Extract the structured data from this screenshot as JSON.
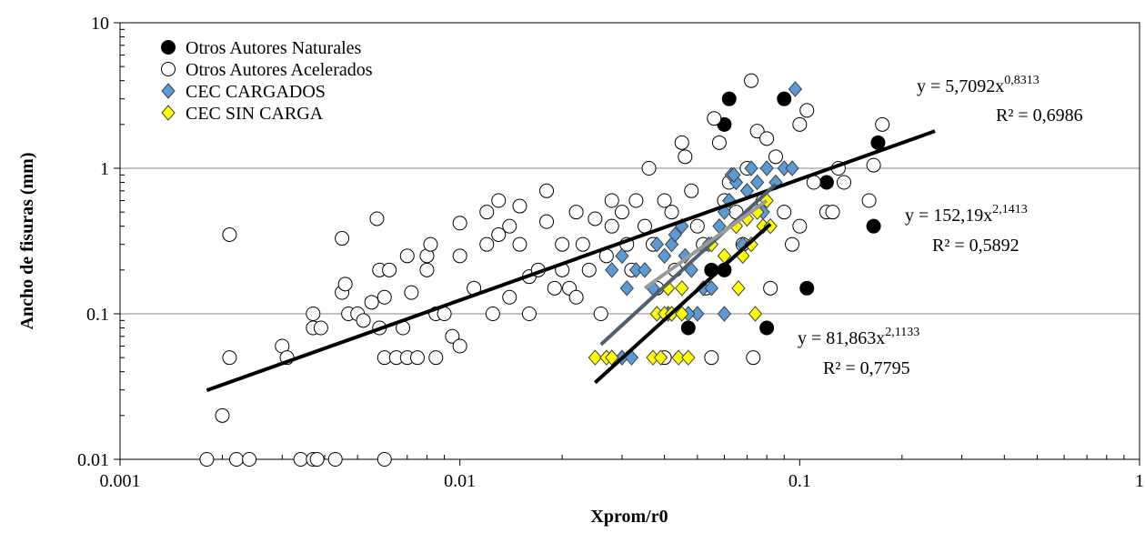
{
  "chart_data": {
    "type": "scatter",
    "xlabel": "Xprom/r0",
    "ylabel": "Ancho de fisuras (mm)",
    "xscale": "log",
    "yscale": "log",
    "xlim": [
      0.001,
      1
    ],
    "ylim": [
      0.01,
      10
    ],
    "xticks": [
      0.001,
      0.01,
      0.1,
      1
    ],
    "yticks": [
      0.01,
      0.1,
      1,
      10
    ],
    "grid": true,
    "legend": "top-left",
    "series": [
      {
        "name": "Otros Autores Naturales",
        "color": "#000000",
        "marker": "circle",
        "x": [
          0.062,
          0.09,
          0.06,
          0.17,
          0.12,
          0.165,
          0.105,
          0.08,
          0.047,
          0.055,
          0.06
        ],
        "values": [
          3,
          3,
          2,
          1.5,
          0.8,
          0.4,
          0.15,
          0.08,
          0.08,
          0.2,
          0.2
        ]
      },
      {
        "name": "Otros Autores Acelerados",
        "color": "#ffffff",
        "marker": "circle",
        "x": [
          0.0018,
          0.0022,
          0.0024,
          0.0034,
          0.0037,
          0.0038,
          0.0043,
          0.006,
          0.002,
          0.0021,
          0.0021,
          0.003,
          0.0031,
          0.0037,
          0.0037,
          0.0039,
          0.0045,
          0.0045,
          0.0046,
          0.0047,
          0.005,
          0.0052,
          0.0055,
          0.0057,
          0.0058,
          0.0058,
          0.006,
          0.006,
          0.0062,
          0.0065,
          0.0068,
          0.007,
          0.007,
          0.0072,
          0.0075,
          0.008,
          0.008,
          0.0082,
          0.0085,
          0.0085,
          0.009,
          0.0095,
          0.01,
          0.01,
          0.01,
          0.011,
          0.012,
          0.012,
          0.0125,
          0.013,
          0.013,
          0.014,
          0.014,
          0.015,
          0.015,
          0.016,
          0.016,
          0.017,
          0.018,
          0.018,
          0.019,
          0.02,
          0.02,
          0.021,
          0.022,
          0.022,
          0.023,
          0.024,
          0.025,
          0.026,
          0.027,
          0.028,
          0.028,
          0.03,
          0.031,
          0.032,
          0.033,
          0.035,
          0.036,
          0.037,
          0.038,
          0.04,
          0.04,
          0.042,
          0.043,
          0.045,
          0.046,
          0.048,
          0.05,
          0.052,
          0.053,
          0.055,
          0.056,
          0.058,
          0.06,
          0.062,
          0.065,
          0.068,
          0.07,
          0.072,
          0.073,
          0.075,
          0.078,
          0.08,
          0.082,
          0.085,
          0.09,
          0.095,
          0.1,
          0.1,
          0.105,
          0.11,
          0.12,
          0.125,
          0.13,
          0.135,
          0.16,
          0.165,
          0.175
        ],
        "values": [
          0.01,
          0.01,
          0.01,
          0.01,
          0.01,
          0.01,
          0.01,
          0.01,
          0.02,
          0.05,
          0.35,
          0.06,
          0.05,
          0.1,
          0.08,
          0.08,
          0.33,
          0.14,
          0.16,
          0.1,
          0.1,
          0.09,
          0.12,
          0.45,
          0.2,
          0.08,
          0.05,
          0.13,
          0.2,
          0.05,
          0.08,
          0.25,
          0.05,
          0.14,
          0.05,
          0.25,
          0.2,
          0.3,
          0.1,
          0.05,
          0.1,
          0.07,
          0.06,
          0.25,
          0.42,
          0.15,
          0.3,
          0.5,
          0.1,
          0.35,
          0.6,
          0.13,
          0.4,
          0.3,
          0.55,
          0.18,
          0.1,
          0.2,
          0.7,
          0.43,
          0.15,
          0.3,
          0.2,
          0.15,
          0.13,
          0.5,
          0.3,
          0.2,
          0.45,
          0.1,
          0.25,
          0.6,
          0.4,
          0.5,
          0.3,
          0.2,
          0.6,
          0.4,
          1.0,
          0.3,
          0.15,
          0.6,
          0.05,
          0.5,
          0.2,
          1.5,
          1.2,
          0.7,
          0.4,
          0.3,
          0.15,
          0.05,
          2.2,
          1.5,
          0.6,
          0.8,
          0.5,
          0.3,
          1.0,
          4.0,
          0.05,
          1.8,
          0.6,
          1.6,
          0.15,
          1.2,
          0.5,
          0.3,
          0.4,
          2.0,
          2.5,
          0.8,
          0.5,
          0.5,
          1.0,
          0.8,
          0.6,
          1.05,
          2.0
        ]
      },
      {
        "name": "CEC CARGADOS",
        "color": "#5b9bd5",
        "marker": "diamond",
        "x": [
          0.028,
          0.03,
          0.032,
          0.028,
          0.03,
          0.031,
          0.033,
          0.035,
          0.037,
          0.038,
          0.04,
          0.042,
          0.043,
          0.045,
          0.046,
          0.048,
          0.05,
          0.052,
          0.054,
          0.055,
          0.058,
          0.06,
          0.062,
          0.063,
          0.065,
          0.068,
          0.07,
          0.072,
          0.075,
          0.078,
          0.08,
          0.085,
          0.09,
          0.095,
          0.097,
          0.06,
          0.064,
          0.041,
          0.047
        ],
        "values": [
          0.05,
          0.05,
          0.05,
          0.2,
          0.25,
          0.15,
          0.2,
          0.2,
          0.15,
          0.3,
          0.25,
          0.3,
          0.35,
          0.4,
          0.25,
          0.2,
          0.1,
          0.15,
          0.3,
          0.15,
          0.4,
          0.5,
          0.6,
          0.9,
          0.8,
          0.3,
          0.7,
          1.0,
          0.8,
          0.5,
          1.0,
          0.8,
          1.0,
          1.0,
          3.5,
          0.1,
          0.9,
          0.1,
          0.1
        ]
      },
      {
        "name": "CEC SIN CARGA",
        "color": "#ffff00",
        "marker": "diamond",
        "x": [
          0.025,
          0.027,
          0.028,
          0.037,
          0.039,
          0.044,
          0.047,
          0.038,
          0.04,
          0.042,
          0.045,
          0.041,
          0.045,
          0.055,
          0.06,
          0.065,
          0.066,
          0.068,
          0.07,
          0.072,
          0.074,
          0.075,
          0.078,
          0.08,
          0.082
        ],
        "values": [
          0.05,
          0.05,
          0.05,
          0.05,
          0.05,
          0.05,
          0.05,
          0.1,
          0.1,
          0.1,
          0.1,
          0.15,
          0.15,
          0.3,
          0.25,
          0.4,
          0.15,
          0.25,
          0.45,
          0.3,
          0.1,
          0.5,
          0.4,
          0.6,
          0.4
        ]
      }
    ],
    "trendlines": [
      {
        "color": "#000000",
        "x": [
          0.0018,
          0.25
        ],
        "values": [
          0.0298,
          1.8
        ]
      },
      {
        "color": "#000000",
        "x": [
          0.025,
          0.082
        ],
        "values": [
          0.0337,
          0.414
        ]
      },
      {
        "color": "#4f5f6f",
        "x": [
          0.026,
          0.085
        ],
        "values": [
          0.0614,
          0.776
        ]
      },
      {
        "color": "#9a9a9a",
        "x": [
          0.035,
          0.08
        ],
        "values": [
          0.15,
          0.6
        ]
      }
    ],
    "annotations": [
      {
        "text": "y = 5,7092x",
        "sup": "0,8313",
        "r2": "R² = 0,6986"
      },
      {
        "text": "y = 152,19x",
        "sup": "2,1413",
        "r2": "R² = 0,5892"
      },
      {
        "text": "y = 81,863x",
        "sup": "2,1133",
        "r2": "R² = 0,7795"
      }
    ]
  }
}
